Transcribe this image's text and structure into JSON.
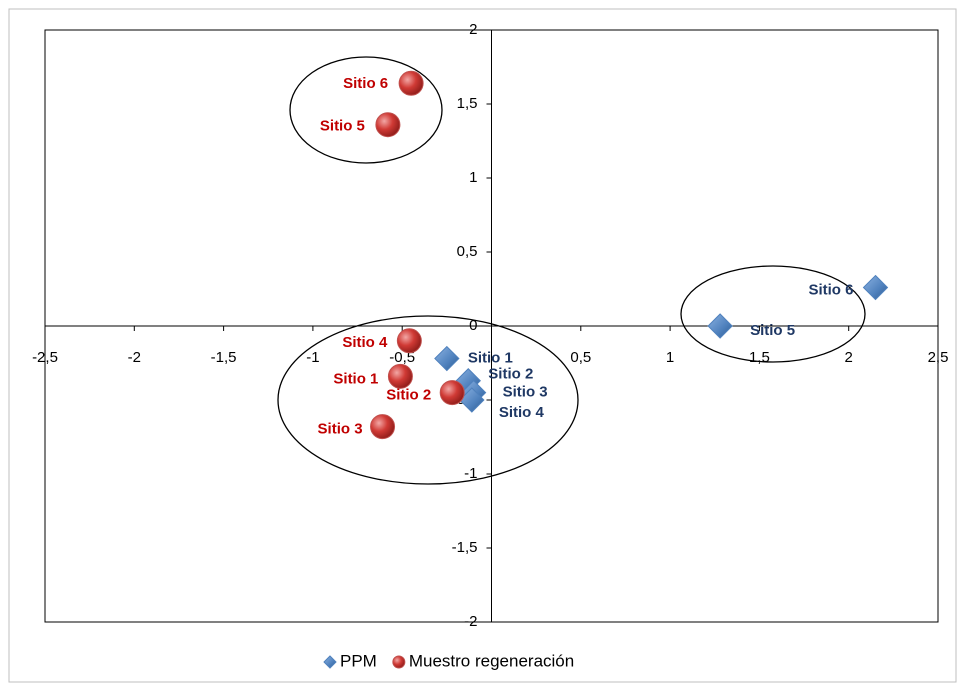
{
  "chart_data": {
    "type": "scatter",
    "xlim": [
      -2.5,
      2.5
    ],
    "ylim": [
      -2,
      2
    ],
    "xticks": [
      {
        "value": -2.5,
        "label": "-2,5"
      },
      -2,
      {
        "value": -1.5,
        "label": "-1,5"
      },
      -1,
      {
        "value": -0.5,
        "label": "-0,5"
      },
      {
        "value": 0.5,
        "label": "0,5"
      },
      1,
      {
        "value": 1.5,
        "label": "1,5"
      },
      2,
      {
        "value": 2.5,
        "label": "2,5"
      }
    ],
    "yticks": [
      -2,
      {
        "value": -1.5,
        "label": "-1,5"
      },
      -1,
      {
        "value": -0.5,
        "label": "-0,5"
      },
      0,
      {
        "value": 0.5,
        "label": "0,5"
      },
      1,
      {
        "value": 1.5,
        "label": "1,5"
      },
      2
    ],
    "series": [
      {
        "name": "PPM",
        "color": "#4f81bd",
        "marker": "diamond",
        "label_color": "#1f3864",
        "x": [
          -0.25,
          -0.13,
          -0.1,
          -0.11,
          1.28,
          2.15
        ],
        "values": [
          -0.22,
          -0.37,
          -0.45,
          -0.5,
          0.0,
          0.26
        ],
        "labels": [
          "Sitio 1",
          "Sitio 2",
          "Sitio 3",
          "Sitio 4",
          "Sitio 5",
          "Sitio 6"
        ]
      },
      {
        "name": "Muestro regeneración",
        "color": "#c0504d",
        "marker": "circle",
        "label_color": "#c00000",
        "x": [
          -0.51,
          -0.22,
          -0.61,
          -0.46,
          -0.58,
          -0.45
        ],
        "values": [
          -0.34,
          -0.45,
          -0.68,
          -0.1,
          1.36,
          1.64
        ],
        "labels": [
          "Sitio 1",
          "Sitio 2",
          "Sitio 3",
          "Sitio 4",
          "Sitio 5",
          "Sitio 6"
        ]
      }
    ]
  }
}
